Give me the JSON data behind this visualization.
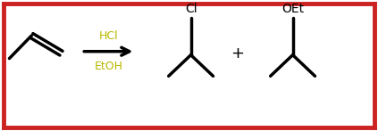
{
  "background_color": "#ffffff",
  "border_color": "#cc2222",
  "line_color": "#000000",
  "reagent_color": "#b8b800",
  "lw": 2.5,
  "fig_width": 4.23,
  "fig_height": 1.47,
  "dpi": 100,
  "arrow_above": "HCl",
  "arrow_below": "EtOH",
  "plus_sign": "+",
  "cl_label": "Cl",
  "oet_label": "OEt",
  "xlim": [
    0,
    10
  ],
  "ylim": [
    0,
    3.5
  ]
}
